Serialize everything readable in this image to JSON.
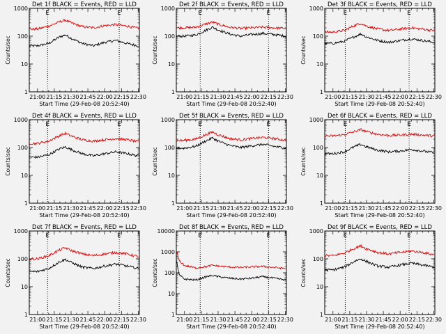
{
  "chart_data": [
    {
      "type": "line",
      "title": "Det 1f BLACK = Events, RED = LLD",
      "xlabel": "Start Time (29-Feb-08 20:52:40)",
      "ylabel": "Counts/sec",
      "x_ticks": [
        "21:00",
        "21:15",
        "21:30",
        "21:45",
        "22:00",
        "22:15",
        "22:30"
      ],
      "y_ticks": [
        "1",
        "10",
        "100",
        "1000"
      ],
      "ylim": [
        1,
        1000
      ],
      "yscale": "log",
      "event_markers": [
        "21:09",
        "22:13"
      ],
      "marker_label": "E",
      "series": [
        {
          "color": "#000000",
          "x": [
            "20:53",
            "21:00",
            "21:10",
            "21:20",
            "21:25",
            "21:30",
            "21:40",
            "21:50",
            "22:00",
            "22:10",
            "22:20",
            "22:30"
          ],
          "y": [
            45,
            45,
            55,
            95,
            110,
            85,
            55,
            45,
            60,
            70,
            55,
            45
          ]
        },
        {
          "color": "#e00000",
          "x": [
            "20:53",
            "21:00",
            "21:10",
            "21:20",
            "21:25",
            "21:30",
            "21:40",
            "21:50",
            "22:00",
            "22:10",
            "22:20",
            "22:30"
          ],
          "y": [
            180,
            180,
            230,
            330,
            380,
            300,
            220,
            200,
            240,
            260,
            230,
            190
          ]
        }
      ]
    },
    {
      "type": "line",
      "title": "Det 2f BLACK = Events, RED = LLD",
      "xlabel": "Start Time (29-Feb-08 20:52:40)",
      "ylabel": "Counts/sec",
      "x_ticks": [
        "21:00",
        "21:15",
        "21:30",
        "21:45",
        "22:00",
        "22:15",
        "22:30"
      ],
      "y_ticks": [
        "1",
        "10",
        "100",
        "1000"
      ],
      "ylim": [
        1,
        1000
      ],
      "yscale": "log",
      "event_markers": [
        "21:14",
        "22:15"
      ],
      "marker_label": "E",
      "series": [
        {
          "color": "#000000",
          "x": [
            "20:53",
            "21:00",
            "21:10",
            "21:20",
            "21:25",
            "21:30",
            "21:40",
            "21:50",
            "22:00",
            "22:10",
            "22:20",
            "22:30"
          ],
          "y": [
            100,
            100,
            110,
            170,
            210,
            170,
            120,
            100,
            115,
            125,
            115,
            100
          ]
        },
        {
          "color": "#e00000",
          "x": [
            "20:53",
            "21:00",
            "21:10",
            "21:20",
            "21:25",
            "21:30",
            "21:40",
            "21:50",
            "22:00",
            "22:10",
            "22:20",
            "22:30"
          ],
          "y": [
            200,
            200,
            210,
            280,
            320,
            270,
            210,
            190,
            200,
            210,
            200,
            190
          ]
        }
      ]
    },
    {
      "type": "line",
      "title": "Det 3f BLACK = Events, RED = LLD",
      "xlabel": "Start Time (29-Feb-08 20:52:40)",
      "ylabel": "Counts/sec",
      "x_ticks": [
        "21:00",
        "21:15",
        "21:30",
        "21:45",
        "22:00",
        "22:15",
        "22:30"
      ],
      "y_ticks": [
        "1",
        "10",
        "100",
        "1000"
      ],
      "ylim": [
        1,
        1000
      ],
      "yscale": "log",
      "event_markers": [
        "21:11",
        "22:08"
      ],
      "marker_label": "E",
      "series": [
        {
          "color": "#000000",
          "x": [
            "20:53",
            "21:00",
            "21:10",
            "21:20",
            "21:25",
            "21:30",
            "21:40",
            "21:50",
            "22:00",
            "22:10",
            "22:20",
            "22:30"
          ],
          "y": [
            55,
            55,
            65,
            100,
            120,
            95,
            70,
            60,
            70,
            80,
            70,
            60
          ]
        },
        {
          "color": "#e00000",
          "x": [
            "20:53",
            "21:00",
            "21:10",
            "21:20",
            "21:25",
            "21:30",
            "21:40",
            "21:50",
            "22:00",
            "22:10",
            "22:20",
            "22:30"
          ],
          "y": [
            140,
            140,
            160,
            250,
            290,
            230,
            180,
            160,
            180,
            200,
            180,
            160
          ]
        }
      ]
    },
    {
      "type": "line",
      "title": "Det 4f BLACK = Events, RED = LLD",
      "xlabel": "Start Time (29-Feb-08 20:52:40)",
      "ylabel": "Counts/sec",
      "x_ticks": [
        "21:00",
        "21:15",
        "21:30",
        "21:45",
        "22:00",
        "22:15",
        "22:30"
      ],
      "y_ticks": [
        "1",
        "10",
        "100",
        "1000"
      ],
      "ylim": [
        1,
        1000
      ],
      "yscale": "log",
      "event_markers": [
        "21:09",
        "22:13"
      ],
      "marker_label": "E",
      "series": [
        {
          "color": "#000000",
          "x": [
            "20:53",
            "21:00",
            "21:10",
            "21:20",
            "21:25",
            "21:30",
            "21:40",
            "21:50",
            "22:00",
            "22:10",
            "22:20",
            "22:30"
          ],
          "y": [
            45,
            45,
            55,
            90,
            105,
            85,
            60,
            50,
            60,
            70,
            60,
            50
          ]
        },
        {
          "color": "#e00000",
          "x": [
            "20:53",
            "21:00",
            "21:10",
            "21:20",
            "21:25",
            "21:30",
            "21:40",
            "21:50",
            "22:00",
            "22:10",
            "22:20",
            "22:30"
          ],
          "y": [
            140,
            140,
            170,
            270,
            320,
            260,
            190,
            170,
            190,
            210,
            190,
            160
          ]
        }
      ]
    },
    {
      "type": "line",
      "title": "Det 5f BLACK = Events, RED = LLD",
      "xlabel": "Start Time (29-Feb-08 20:52:40)",
      "ylabel": "Counts/sec",
      "x_ticks": [
        "21:00",
        "21:15",
        "21:30",
        "21:45",
        "22:00",
        "22:15",
        "22:30"
      ],
      "y_ticks": [
        "1",
        "10",
        "100",
        "1000"
      ],
      "ylim": [
        1,
        1000
      ],
      "yscale": "log",
      "event_markers": [
        "21:14",
        "22:15"
      ],
      "marker_label": "E",
      "series": [
        {
          "color": "#000000",
          "x": [
            "20:53",
            "21:00",
            "21:10",
            "21:20",
            "21:25",
            "21:30",
            "21:40",
            "21:50",
            "22:00",
            "22:10",
            "22:20",
            "22:30"
          ],
          "y": [
            95,
            95,
            110,
            180,
            220,
            170,
            120,
            100,
            115,
            130,
            110,
            95
          ]
        },
        {
          "color": "#e00000",
          "x": [
            "20:53",
            "21:00",
            "21:10",
            "21:20",
            "21:25",
            "21:30",
            "21:40",
            "21:50",
            "22:00",
            "22:10",
            "22:20",
            "22:30"
          ],
          "y": [
            180,
            180,
            200,
            300,
            360,
            290,
            210,
            190,
            210,
            230,
            210,
            180
          ]
        }
      ]
    },
    {
      "type": "line",
      "title": "Det 6f BLACK = Events, RED = LLD",
      "xlabel": "Start Time (29-Feb-08 20:52:40)",
      "ylabel": "Counts/sec",
      "x_ticks": [
        "21:00",
        "21:15",
        "21:30",
        "21:45",
        "22:00",
        "22:15",
        "22:30"
      ],
      "y_ticks": [
        "1",
        "10",
        "100",
        "1000"
      ],
      "ylim": [
        1,
        1000
      ],
      "yscale": "log",
      "event_markers": [
        "21:11",
        "22:08"
      ],
      "marker_label": "E",
      "series": [
        {
          "color": "#000000",
          "x": [
            "20:53",
            "21:00",
            "21:10",
            "21:20",
            "21:25",
            "21:30",
            "21:40",
            "21:50",
            "22:00",
            "22:10",
            "22:20",
            "22:30"
          ],
          "y": [
            60,
            60,
            70,
            110,
            130,
            105,
            80,
            70,
            75,
            85,
            75,
            65
          ]
        },
        {
          "color": "#e00000",
          "x": [
            "20:53",
            "21:00",
            "21:10",
            "21:20",
            "21:25",
            "21:30",
            "21:40",
            "21:50",
            "22:00",
            "22:10",
            "22:20",
            "22:30"
          ],
          "y": [
            260,
            260,
            290,
            380,
            440,
            370,
            300,
            270,
            280,
            300,
            280,
            260
          ]
        }
      ]
    },
    {
      "type": "line",
      "title": "Det 7f BLACK = Events, RED = LLD",
      "xlabel": "Start Time (29-Feb-08 20:52:40)",
      "ylabel": "Counts/sec",
      "x_ticks": [
        "21:00",
        "21:15",
        "21:30",
        "21:45",
        "22:00",
        "22:15",
        "22:30"
      ],
      "y_ticks": [
        "1",
        "10",
        "100",
        "1000"
      ],
      "ylim": [
        1,
        1000
      ],
      "yscale": "log",
      "event_markers": [
        "21:09",
        "22:13"
      ],
      "marker_label": "E",
      "series": [
        {
          "color": "#000000",
          "x": [
            "20:53",
            "21:00",
            "21:10",
            "21:20",
            "21:25",
            "21:30",
            "21:40",
            "21:50",
            "22:00",
            "22:10",
            "22:20",
            "22:30"
          ],
          "y": [
            35,
            35,
            45,
            80,
            95,
            75,
            50,
            45,
            55,
            65,
            55,
            45
          ]
        },
        {
          "color": "#e00000",
          "x": [
            "20:53",
            "21:00",
            "21:10",
            "21:20",
            "21:25",
            "21:30",
            "21:40",
            "21:50",
            "22:00",
            "22:10",
            "22:20",
            "22:30"
          ],
          "y": [
            100,
            100,
            130,
            210,
            250,
            200,
            150,
            130,
            150,
            170,
            150,
            120
          ]
        }
      ]
    },
    {
      "type": "line",
      "title": "Det 8f BLACK = Events, RED = LLD",
      "xlabel": "Start Time (29-Feb-08 20:52:40)",
      "ylabel": "Counts/sec",
      "x_ticks": [
        "21:00",
        "21:15",
        "21:30",
        "21:45",
        "22:00",
        "22:15",
        "22:30"
      ],
      "y_ticks": [
        "1",
        "10",
        "100",
        "1000",
        "10000"
      ],
      "ylim": [
        1,
        10000
      ],
      "yscale": "log",
      "event_markers": [
        "21:14",
        "22:15"
      ],
      "marker_label": "E",
      "series": [
        {
          "color": "#000000",
          "x": [
            "20:53",
            "20:55",
            "21:00",
            "21:10",
            "21:20",
            "21:25",
            "21:30",
            "21:40",
            "21:50",
            "22:00",
            "22:10",
            "22:20",
            "22:30"
          ],
          "y": [
            350,
            80,
            50,
            45,
            65,
            75,
            65,
            55,
            50,
            55,
            65,
            55,
            45
          ]
        },
        {
          "color": "#e00000",
          "x": [
            "20:53",
            "20:55",
            "21:00",
            "21:10",
            "21:20",
            "21:25",
            "21:30",
            "21:40",
            "21:50",
            "22:00",
            "22:10",
            "22:20",
            "22:30"
          ],
          "y": [
            1100,
            400,
            220,
            170,
            200,
            230,
            210,
            190,
            180,
            190,
            200,
            180,
            160
          ]
        }
      ]
    },
    {
      "type": "line",
      "title": "Det 9f BLACK = Events, RED = LLD",
      "xlabel": "Start Time (29-Feb-08 20:52:40)",
      "ylabel": "Counts/sec",
      "x_ticks": [
        "21:00",
        "21:15",
        "21:30",
        "21:45",
        "22:00",
        "22:15",
        "22:30"
      ],
      "y_ticks": [
        "1",
        "10",
        "100",
        "1000"
      ],
      "ylim": [
        1,
        1000
      ],
      "yscale": "log",
      "event_markers": [
        "21:11",
        "22:08"
      ],
      "marker_label": "E",
      "series": [
        {
          "color": "#000000",
          "x": [
            "20:53",
            "21:00",
            "21:10",
            "21:20",
            "21:25",
            "21:30",
            "21:40",
            "21:50",
            "22:00",
            "22:10",
            "22:20",
            "22:30"
          ],
          "y": [
            40,
            40,
            50,
            85,
            100,
            80,
            55,
            50,
            60,
            70,
            60,
            50
          ]
        },
        {
          "color": "#e00000",
          "x": [
            "20:53",
            "21:00",
            "21:10",
            "21:20",
            "21:25",
            "21:30",
            "21:40",
            "21:50",
            "22:00",
            "22:10",
            "22:20",
            "22:30"
          ],
          "y": [
            130,
            130,
            160,
            250,
            290,
            230,
            170,
            150,
            170,
            190,
            170,
            140
          ]
        }
      ]
    }
  ]
}
